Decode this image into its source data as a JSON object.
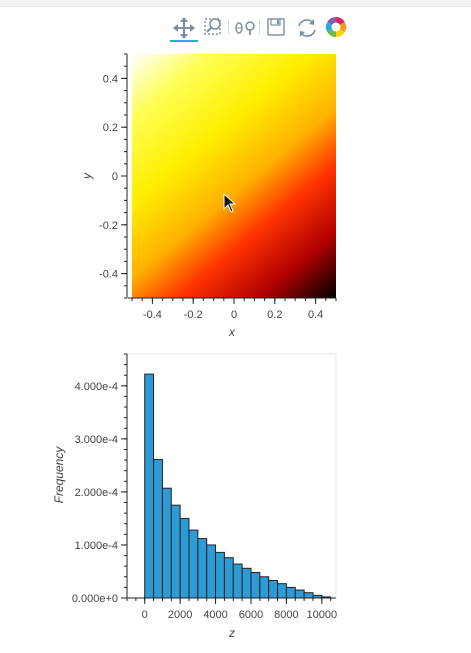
{
  "toolbar": {
    "tools": [
      {
        "name": "pan-tool",
        "icon": "pan-icon",
        "active": true
      },
      {
        "name": "box-zoom-tool",
        "icon": "box-zoom-icon",
        "active": false
      },
      {
        "name": "wheel-zoom-tool",
        "icon": "wheel-zoom-icon",
        "active": false
      },
      {
        "name": "save-tool",
        "icon": "save-icon",
        "active": false
      },
      {
        "name": "reset-tool",
        "icon": "reset-icon",
        "active": false
      },
      {
        "name": "bokeh-logo",
        "icon": "bokeh-logo-icon",
        "active": false
      }
    ],
    "active_color": "#26aae1"
  },
  "chart_data": [
    {
      "type": "heatmap",
      "colormap": "hot_r",
      "xlabel": "x",
      "ylabel": "y",
      "xlim": [
        -0.5,
        0.5
      ],
      "ylim": [
        -0.5,
        0.5
      ],
      "x_ticks": [
        "-0.4",
        "-0.2",
        "0",
        "0.2",
        "0.4"
      ],
      "y_ticks": [
        "-0.4",
        "-0.2",
        "0",
        "0.2",
        "0.4"
      ],
      "description_values": {
        "low_corner": "top-left",
        "high_corner": "bottom-right"
      }
    },
    {
      "type": "bar",
      "xlabel": "z",
      "ylabel": "Frequency",
      "xlim": [
        -1000,
        10800
      ],
      "ylim": [
        0,
        0.00046
      ],
      "x_ticks": [
        "0",
        "2000",
        "4000",
        "6000",
        "8000",
        "10000"
      ],
      "x_tick_values": [
        0,
        2000,
        4000,
        6000,
        8000,
        10000
      ],
      "y_ticks": [
        "0.000e+0",
        "1.000e-4",
        "2.000e-4",
        "3.000e-4",
        "4.000e-4"
      ],
      "y_tick_values": [
        0,
        0.0001,
        0.0002,
        0.0003,
        0.0004
      ],
      "bin_width": 500,
      "bins_start": 0,
      "values": [
        0.000422,
        0.000261,
        0.000207,
        0.000175,
        0.00015,
        0.000128,
        0.000112,
        0.0001,
        8.6e-05,
        7.6e-05,
        6.4e-05,
        5.6e-05,
        4.8e-05,
        4e-05,
        3.3e-05,
        2.7e-05,
        2e-05,
        1.5e-05,
        1e-05,
        5e-06,
        2e-06
      ],
      "bar_color": "#2c9bd6",
      "edge_color": "#222222"
    }
  ]
}
